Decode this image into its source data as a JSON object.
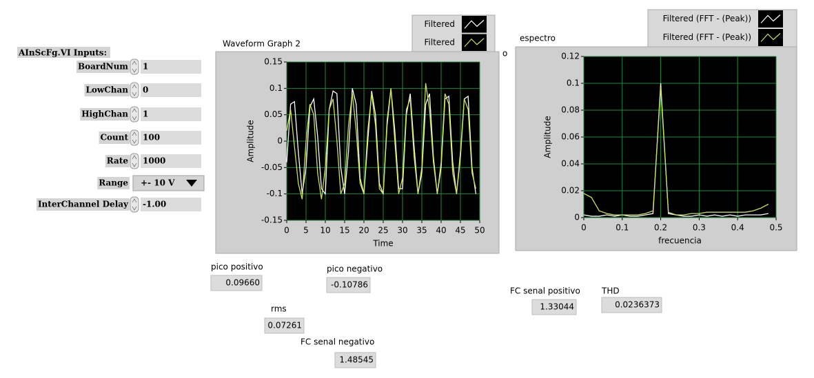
{
  "panel": {
    "title": "AInScFg.VI Inputs:",
    "controls": [
      {
        "label": "BoardNum",
        "value": 1
      },
      {
        "label": "LowChan",
        "value": 0
      },
      {
        "label": "HighChan",
        "value": 1
      },
      {
        "label": "Count",
        "value": 100
      },
      {
        "label": "Rate",
        "value": 1000
      },
      {
        "label": "Range",
        "value": "+- 10 V"
      },
      {
        "label": "InterChannel Delay",
        "value": "-1.00"
      }
    ]
  },
  "indicators": [
    {
      "label": "pico positivo",
      "value": "0.09660"
    },
    {
      "label": "pico negativo",
      "value": -0.10786
    },
    {
      "label": "rms",
      "value": "0.07261"
    },
    {
      "label": "FC senal negativo",
      "value": 1.48545
    },
    {
      "label": "FC senal positivo",
      "value": 1.33044
    },
    {
      "label": "THD",
      "value": 0.0236373
    }
  ],
  "stray_text": "o",
  "chart_data": [
    {
      "type": "line",
      "title": "Waveform Graph 2",
      "x_label": "Time",
      "y_label": "Amplitude",
      "x": [
        0,
        1,
        2,
        3,
        4,
        5,
        6,
        7,
        8,
        9,
        10,
        11,
        12,
        13,
        14,
        15,
        16,
        17,
        18,
        19,
        20,
        21,
        22,
        23,
        24,
        25,
        26,
        27,
        28,
        29,
        30,
        31,
        32,
        33,
        34,
        35,
        36,
        37,
        38,
        39,
        40,
        41,
        42,
        43,
        44,
        45,
        46,
        47,
        48,
        49
      ],
      "series": [
        {
          "name": "Filtered",
          "color": "#ffffff",
          "values": [
            -0.04,
            0.07,
            0.075,
            -0.02,
            -0.1,
            -0.05,
            0.065,
            0.08,
            0.01,
            -0.09,
            -0.1,
            0.06,
            0.095,
            0.09,
            -0.05,
            -0.1,
            -0.02,
            0.1,
            0.07,
            -0.07,
            -0.1,
            0.0,
            0.095,
            0.05,
            -0.08,
            -0.1,
            0.03,
            0.1,
            0.02,
            -0.09,
            -0.09,
            0.05,
            0.09,
            -0.01,
            -0.1,
            -0.06,
            0.07,
            0.09,
            -0.03,
            -0.1,
            -0.05,
            0.08,
            0.085,
            -0.04,
            -0.1,
            -0.03,
            0.08,
            0.085,
            -0.05,
            -0.1
          ]
        },
        {
          "name": "Filtered",
          "color": "#c8e05a",
          "values": [
            0.02,
            0.06,
            -0.01,
            -0.08,
            -0.11,
            0.0,
            0.07,
            0.05,
            -0.06,
            -0.11,
            -0.05,
            0.06,
            0.08,
            0.0,
            -0.1,
            -0.08,
            0.03,
            0.09,
            0.02,
            -0.08,
            -0.1,
            0.02,
            0.09,
            0.03,
            -0.09,
            -0.1,
            0.04,
            0.1,
            0.0,
            -0.1,
            -0.07,
            0.06,
            0.08,
            -0.03,
            -0.1,
            -0.05,
            0.11,
            0.06,
            -0.04,
            -0.1,
            -0.04,
            0.09,
            0.07,
            -0.06,
            -0.1,
            -0.02,
            0.08,
            0.06,
            -0.06,
            -0.09
          ]
        }
      ],
      "xlim": [
        0,
        50
      ],
      "ylim": [
        -0.15,
        0.15
      ],
      "xticks": [
        0,
        5,
        10,
        15,
        20,
        25,
        30,
        35,
        40,
        45,
        50
      ],
      "yticks": [
        -0.15,
        -0.1,
        -0.05,
        0,
        0.05,
        0.1,
        0.15
      ],
      "grid": true
    },
    {
      "type": "line",
      "title": "espectro",
      "x_label": "frecuencia",
      "y_label": "Amplitude",
      "x": [
        0,
        0.02,
        0.04,
        0.06,
        0.08,
        0.1,
        0.12,
        0.14,
        0.16,
        0.18,
        0.2,
        0.22,
        0.24,
        0.26,
        0.28,
        0.3,
        0.32,
        0.34,
        0.36,
        0.38,
        0.4,
        0.42,
        0.44,
        0.46,
        0.48
      ],
      "series": [
        {
          "name": "Filtered (FFT - (Peak))",
          "color": "#ffffff",
          "values": [
            0.002,
            0.001,
            0.001,
            0.002,
            0.001,
            0.002,
            0.001,
            0.001,
            0.002,
            0.003,
            0.1,
            0.003,
            0.002,
            0.001,
            0.001,
            0.002,
            0.001,
            0.002,
            0.001,
            0.002,
            0.001,
            0.002,
            0.002,
            0.002,
            0.003
          ]
        },
        {
          "name": "Filtered (FFT - (Peak))",
          "color": "#c8e05a",
          "values": [
            0.018,
            0.015,
            0.005,
            0.003,
            0.002,
            0.002,
            0.002,
            0.002,
            0.003,
            0.005,
            0.097,
            0.004,
            0.002,
            0.002,
            0.003,
            0.003,
            0.004,
            0.004,
            0.004,
            0.004,
            0.004,
            0.004,
            0.005,
            0.007,
            0.01
          ]
        }
      ],
      "xlim": [
        0,
        0.5
      ],
      "ylim": [
        0,
        0.12
      ],
      "xticks": [
        0,
        0.1,
        0.2,
        0.3,
        0.4,
        0.5
      ],
      "yticks": [
        0,
        0.02,
        0.04,
        0.06,
        0.08,
        0.1,
        0.12
      ],
      "grid": true
    }
  ]
}
